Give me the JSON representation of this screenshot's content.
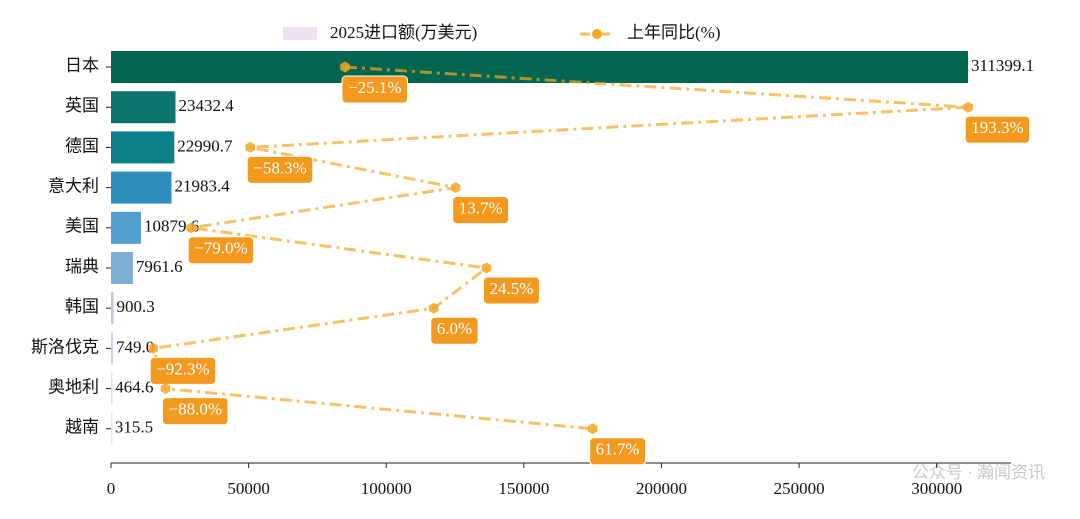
{
  "chart_data": {
    "type": "bar-line",
    "categories": [
      "日本",
      "英国",
      "德国",
      "意大利",
      "美国",
      "瑞典",
      "韩国",
      "斯洛伐克",
      "奥地利",
      "越南"
    ],
    "series": [
      {
        "name": "2025进口额(万美元)",
        "type": "bar",
        "color": "#ede0f0",
        "colors": [
          "#02654f",
          "#0a766e",
          "#0c8089",
          "#2e8fbf",
          "#509fcc",
          "#7daed3",
          "#c4c3e0",
          "#d3cde8",
          "#e3dcef",
          "#ece5f2"
        ],
        "values": [
          311399.1,
          23432.4,
          22990.7,
          21983.4,
          10879.6,
          7961.6,
          900.3,
          749.0,
          464.6,
          315.5
        ],
        "value_labels": [
          "311399.1",
          "23432.4",
          "22990.7",
          "21983.4",
          "10879.6",
          "7961.6",
          "900.3",
          "749.0",
          "464.6",
          "315.5"
        ]
      },
      {
        "name": "上年同比(%)",
        "type": "line",
        "axis": "x2",
        "color": "#f5a623",
        "values": [
          -25.1,
          193.3,
          -58.3,
          13.7,
          -79.0,
          24.5,
          6.0,
          -92.3,
          -88.0,
          61.7
        ],
        "value_labels": [
          "−25.1%",
          "193.3%",
          "−58.3%",
          "13.7%",
          "−79.0%",
          "24.5%",
          "6.0%",
          "−92.3%",
          "−88.0%",
          "61.7%"
        ]
      }
    ],
    "xlim": [
      0,
      327000
    ],
    "xticks": [
      0,
      50000,
      100000,
      150000,
      200000,
      250000,
      300000
    ],
    "x2lim": [
      -107.1,
      208.3
    ],
    "watermark": "公众号 · 瀚闻资讯"
  }
}
